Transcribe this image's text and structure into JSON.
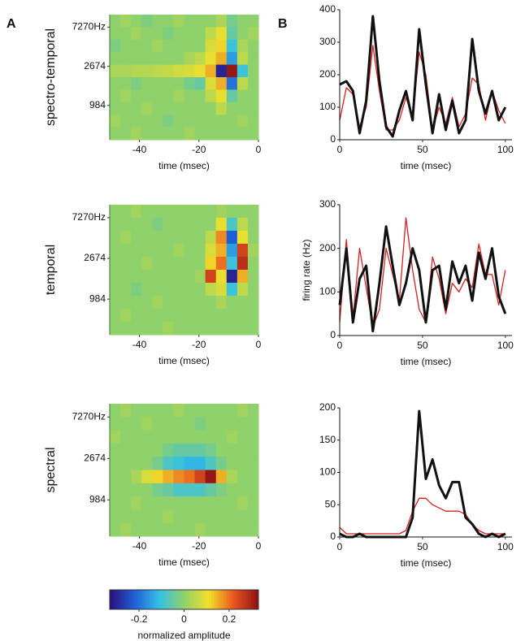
{
  "panel_labels": [
    "A",
    "B"
  ],
  "chart_data": [
    {
      "type": "heatmap",
      "ylabel": "spectro-temporal",
      "xlabel": "time (msec)",
      "xlim": [
        -50,
        0
      ],
      "xticks": [
        -40,
        -20,
        0
      ],
      "ylim": [
        410,
        10000
      ],
      "log_scale": true,
      "yticks": [
        {
          "value": 7270,
          "label": "7270Hz"
        },
        2674,
        984
      ],
      "z": [
        [
          0,
          0.02,
          0,
          -0.02,
          0,
          0,
          0.02,
          0,
          0,
          0,
          0.03,
          -0.03,
          0,
          0
        ],
        [
          0,
          0,
          0.02,
          0,
          0,
          -0.02,
          0,
          0,
          0,
          0.05,
          0.1,
          -0.05,
          0,
          0.02
        ],
        [
          -0.02,
          0,
          0,
          0,
          0.02,
          0,
          0,
          0,
          0,
          0.08,
          0.12,
          -0.1,
          0.03,
          0
        ],
        [
          0,
          0,
          0,
          0,
          0,
          0,
          0,
          0.03,
          0.05,
          0.1,
          0.15,
          -0.15,
          0.05,
          0
        ],
        [
          0.03,
          0.03,
          0.04,
          0.04,
          0.05,
          0.06,
          0.07,
          0.08,
          0.1,
          0.15,
          -0.3,
          0.32,
          -0.1,
          0
        ],
        [
          0,
          0,
          -0.02,
          0,
          0,
          0,
          0,
          -0.03,
          -0.05,
          0.08,
          0.15,
          -0.2,
          0.05,
          0
        ],
        [
          0,
          0.02,
          0,
          0,
          0,
          0,
          0.02,
          0,
          0,
          0.05,
          0.1,
          -0.05,
          0,
          0
        ],
        [
          0,
          0,
          0,
          0.02,
          0,
          0,
          0,
          0,
          0,
          0,
          0.05,
          0,
          0,
          0
        ],
        [
          0.02,
          0,
          0,
          0,
          0,
          -0.02,
          0,
          0,
          0,
          0,
          0,
          0,
          0.02,
          0
        ],
        [
          0,
          0,
          0.02,
          0,
          0,
          0,
          0,
          0.02,
          0,
          0,
          0,
          0,
          0,
          0
        ]
      ]
    },
    {
      "type": "line",
      "xlabel": "time (msec)",
      "xlim": [
        0,
        104
      ],
      "xticks": [
        0,
        50,
        100
      ],
      "ylim": [
        0,
        400
      ],
      "yticks": [
        0,
        100,
        200,
        300,
        400
      ],
      "x": [
        0,
        4,
        8,
        12,
        16,
        20,
        24,
        28,
        32,
        36,
        40,
        44,
        48,
        52,
        56,
        60,
        64,
        68,
        72,
        76,
        80,
        84,
        88,
        92,
        96,
        100
      ],
      "series": [
        {
          "color": "#111111",
          "values": [
            170,
            180,
            150,
            20,
            120,
            380,
            180,
            40,
            10,
            90,
            150,
            60,
            340,
            170,
            20,
            140,
            30,
            120,
            20,
            60,
            310,
            150,
            80,
            150,
            60,
            100
          ]
        },
        {
          "color": "#d62020",
          "values": [
            60,
            160,
            140,
            40,
            100,
            290,
            150,
            30,
            30,
            60,
            130,
            70,
            270,
            200,
            30,
            100,
            50,
            130,
            40,
            80,
            190,
            170,
            60,
            150,
            90,
            50
          ]
        }
      ]
    },
    {
      "type": "heatmap",
      "ylabel": "temporal",
      "xlabel": "time (msec)",
      "xlim": [
        -50,
        0
      ],
      "xticks": [
        -40,
        -20,
        0
      ],
      "ylim": [
        410,
        10000
      ],
      "log_scale": true,
      "yticks": [
        {
          "value": 7270,
          "label": "7270Hz"
        },
        2674,
        984
      ],
      "z": [
        [
          0,
          0,
          0.02,
          0,
          0,
          0,
          0,
          0,
          0,
          0,
          0.02,
          0,
          0,
          0
        ],
        [
          0,
          0,
          0,
          0,
          -0.02,
          0,
          0,
          0,
          0,
          0,
          0.1,
          -0.08,
          0.05,
          0
        ],
        [
          0,
          0.02,
          0,
          0,
          0,
          0,
          0,
          0,
          0,
          0.05,
          0.18,
          -0.22,
          0.1,
          0
        ],
        [
          0,
          0,
          0,
          0,
          0,
          0,
          0.02,
          0,
          0,
          0.08,
          0.15,
          -0.15,
          0.25,
          0.02
        ],
        [
          0,
          0,
          0,
          0.02,
          0,
          0,
          0,
          0,
          0,
          0.12,
          0.2,
          -0.1,
          0.28,
          0
        ],
        [
          0,
          0,
          0,
          0,
          0,
          0,
          0,
          0,
          0.02,
          0.25,
          0.1,
          -0.3,
          0.15,
          0
        ],
        [
          0,
          0,
          -0.02,
          0,
          0,
          0,
          0,
          0,
          0,
          0.05,
          0.08,
          -0.1,
          0.05,
          0
        ],
        [
          0,
          0,
          0,
          0,
          0.02,
          0,
          0,
          0,
          0,
          0,
          0.03,
          0,
          0,
          0
        ],
        [
          0,
          0.02,
          0,
          0,
          0,
          0,
          0,
          0,
          0,
          0,
          0,
          0,
          0,
          0
        ],
        [
          0,
          0,
          0,
          0,
          0,
          0.02,
          0,
          0,
          0,
          0,
          0,
          0,
          0,
          0
        ]
      ]
    },
    {
      "type": "line",
      "xlabel": "time (msec)",
      "ylabel": "firing rate (Hz)",
      "xlim": [
        0,
        104
      ],
      "xticks": [
        0,
        50,
        100
      ],
      "ylim": [
        0,
        300
      ],
      "yticks": [
        0,
        100,
        200,
        300
      ],
      "x": [
        0,
        4,
        8,
        12,
        16,
        20,
        24,
        28,
        32,
        36,
        40,
        44,
        48,
        52,
        56,
        60,
        64,
        68,
        72,
        76,
        80,
        84,
        88,
        92,
        96,
        100
      ],
      "series": [
        {
          "color": "#111111",
          "values": [
            70,
            200,
            30,
            130,
            160,
            10,
            120,
            250,
            160,
            70,
            120,
            200,
            150,
            30,
            150,
            160,
            60,
            170,
            120,
            160,
            80,
            190,
            130,
            200,
            90,
            50
          ]
        },
        {
          "color": "#d62020",
          "values": [
            30,
            220,
            40,
            200,
            110,
            20,
            60,
            200,
            140,
            80,
            270,
            150,
            60,
            30,
            180,
            130,
            50,
            120,
            100,
            130,
            110,
            210,
            140,
            140,
            70,
            150
          ]
        }
      ]
    },
    {
      "type": "heatmap",
      "ylabel": "spectral",
      "xlabel": "time (msec)",
      "xlim": [
        -50,
        0
      ],
      "xticks": [
        -40,
        -20,
        0
      ],
      "ylim": [
        410,
        10000
      ],
      "log_scale": true,
      "yticks": [
        {
          "value": 7270,
          "label": "7270Hz"
        },
        2674,
        984
      ],
      "z": [
        [
          0,
          0.02,
          0,
          0,
          0,
          0,
          0.02,
          0,
          0,
          0,
          0,
          0,
          0.02,
          0
        ],
        [
          0,
          0,
          0,
          0.02,
          0,
          0,
          0,
          0,
          -0.02,
          0,
          0,
          0,
          0,
          0
        ],
        [
          0.02,
          0,
          0,
          0,
          0,
          0,
          0,
          0,
          0,
          0,
          0,
          0.02,
          0,
          0
        ],
        [
          0,
          0,
          0,
          0,
          0,
          -0.03,
          -0.05,
          -0.05,
          -0.05,
          -0.03,
          0,
          0,
          0,
          0
        ],
        [
          0,
          0,
          0,
          0,
          -0.03,
          -0.08,
          -0.1,
          -0.12,
          -0.12,
          -0.08,
          -0.03,
          0,
          0,
          0
        ],
        [
          0,
          0,
          0.03,
          0.08,
          0.12,
          0.15,
          0.18,
          0.2,
          0.25,
          0.32,
          0.15,
          0.03,
          0,
          0
        ],
        [
          0,
          0,
          0,
          0,
          -0.03,
          -0.05,
          -0.08,
          -0.08,
          -0.08,
          -0.05,
          -0.02,
          0,
          0,
          0
        ],
        [
          0,
          0,
          0.02,
          0,
          0,
          0,
          0,
          0,
          0,
          0,
          0,
          0,
          0.02,
          0
        ],
        [
          0,
          0,
          0,
          0,
          0,
          0.02,
          0,
          0,
          0,
          0,
          0,
          0,
          0,
          0
        ],
        [
          0,
          0.02,
          0,
          0,
          0,
          0,
          0,
          0,
          0.02,
          0,
          0,
          0,
          0,
          0
        ]
      ]
    },
    {
      "type": "line",
      "xlabel": "time (msec)",
      "xlim": [
        0,
        104
      ],
      "xticks": [
        0,
        50,
        100
      ],
      "ylim": [
        0,
        200
      ],
      "yticks": [
        0,
        50,
        100,
        150,
        200
      ],
      "x": [
        0,
        4,
        8,
        12,
        16,
        20,
        24,
        28,
        32,
        36,
        40,
        44,
        48,
        52,
        56,
        60,
        64,
        68,
        72,
        76,
        80,
        84,
        88,
        92,
        96,
        100
      ],
      "series": [
        {
          "color": "#111111",
          "values": [
            5,
            0,
            0,
            5,
            0,
            0,
            0,
            0,
            0,
            0,
            0,
            30,
            195,
            90,
            120,
            80,
            60,
            85,
            85,
            30,
            20,
            5,
            0,
            5,
            0,
            5
          ]
        },
        {
          "color": "#d62020",
          "values": [
            15,
            5,
            5,
            5,
            5,
            5,
            5,
            5,
            5,
            5,
            10,
            40,
            60,
            60,
            50,
            45,
            40,
            40,
            40,
            35,
            20,
            10,
            5,
            5,
            5,
            5
          ]
        }
      ]
    },
    {
      "type": "colorbar",
      "xlabel": "normalized amplitude",
      "xlim": [
        -0.33,
        0.33
      ],
      "xticks": [
        -0.2,
        0,
        0.2
      ],
      "colors": [
        "#2a0f7a",
        "#1f5fd6",
        "#34c0e6",
        "#8fd16a",
        "#f2e02a",
        "#e8571e",
        "#8c1014"
      ]
    }
  ]
}
